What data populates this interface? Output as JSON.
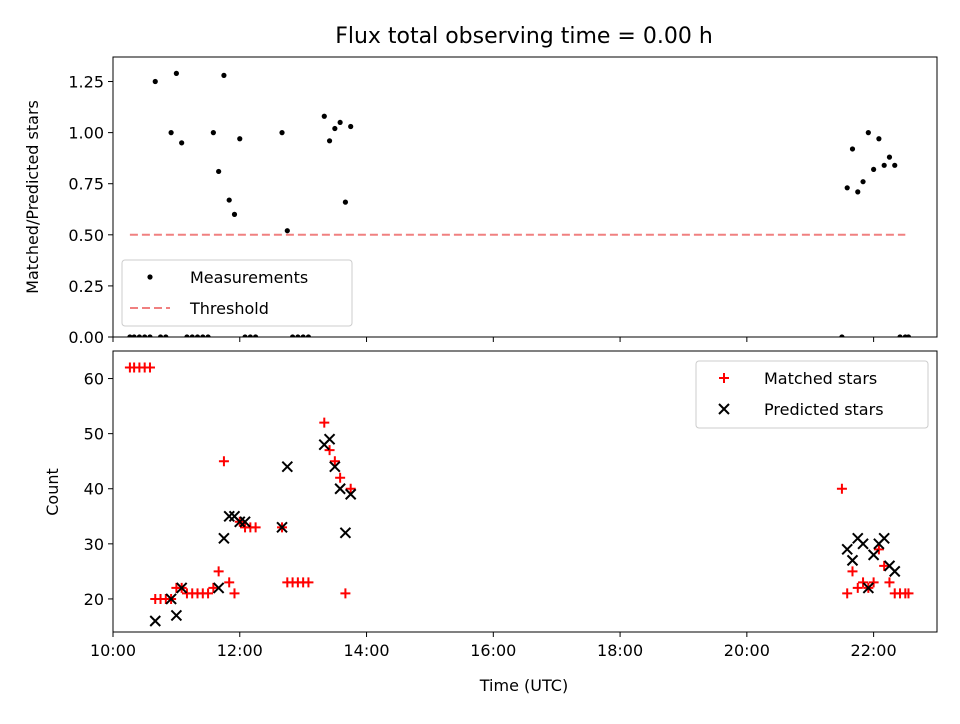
{
  "chart_data": [
    {
      "type": "scatter",
      "title": "Flux total observing time = 0.00 h",
      "xlabel": "",
      "ylabel": "Matched/Predicted stars",
      "xlim": [
        "10:00",
        "23:00"
      ],
      "ylim": [
        0,
        1.37
      ],
      "yticks": [
        "0.00",
        "0.25",
        "0.50",
        "0.75",
        "1.00",
        "1.25"
      ],
      "legend_position": "lower-left",
      "series": [
        {
          "name": "Measurements",
          "marker": "dot",
          "color": "#000000",
          "x": [
            "10:16",
            "10:20",
            "10:25",
            "10:30",
            "10:35",
            "10:40",
            "10:45",
            "10:50",
            "10:55",
            "11:00",
            "11:05",
            "11:10",
            "11:15",
            "11:20",
            "11:25",
            "11:30",
            "11:35",
            "11:40",
            "11:45",
            "11:50",
            "11:55",
            "12:00",
            "12:05",
            "12:10",
            "12:15",
            "12:40",
            "12:45",
            "12:50",
            "12:55",
            "13:00",
            "13:05",
            "13:20",
            "13:25",
            "13:30",
            "13:35",
            "13:40",
            "13:45",
            "21:30",
            "21:35",
            "21:40",
            "21:45",
            "21:50",
            "21:55",
            "22:00",
            "22:05",
            "22:10",
            "22:15",
            "22:20",
            "22:25",
            "22:30",
            "22:33"
          ],
          "y": [
            0,
            0,
            0,
            0,
            0,
            1.25,
            0,
            0,
            1.0,
            1.29,
            0.95,
            0,
            0,
            0,
            0,
            0,
            1.0,
            0.81,
            1.28,
            0.67,
            0.6,
            0.97,
            0,
            0,
            0,
            1.0,
            0.52,
            0,
            0,
            0,
            0,
            1.08,
            0.96,
            1.02,
            1.05,
            0.66,
            1.03,
            0,
            0.73,
            0.92,
            0.71,
            0.76,
            1.0,
            0.82,
            0.97,
            0.84,
            0.88,
            0.84,
            0,
            0,
            0
          ]
        },
        {
          "name": "Threshold",
          "type": "line",
          "style": "dashed",
          "color": "#f08080",
          "x": [
            "10:16",
            "22:30"
          ],
          "y": [
            0.5,
            0.5
          ]
        }
      ]
    },
    {
      "type": "scatter",
      "title": "",
      "xlabel": "Time (UTC)",
      "ylabel": "Count",
      "xlim": [
        "10:00",
        "23:00"
      ],
      "ylim": [
        14,
        65
      ],
      "xticks": [
        "10:00",
        "12:00",
        "14:00",
        "16:00",
        "18:00",
        "20:00",
        "22:00"
      ],
      "yticks": [
        "20",
        "30",
        "40",
        "50",
        "60"
      ],
      "legend_position": "upper-right",
      "series": [
        {
          "name": "Matched stars",
          "marker": "plus",
          "color": "#ff0000",
          "x": [
            "10:16",
            "10:20",
            "10:25",
            "10:30",
            "10:35",
            "10:40",
            "10:45",
            "10:50",
            "10:55",
            "11:00",
            "11:05",
            "11:10",
            "11:15",
            "11:20",
            "11:25",
            "11:30",
            "11:35",
            "11:40",
            "11:45",
            "11:50",
            "11:55",
            "12:00",
            "12:05",
            "12:10",
            "12:15",
            "12:40",
            "12:45",
            "12:50",
            "12:55",
            "13:00",
            "13:05",
            "13:20",
            "13:25",
            "13:30",
            "13:35",
            "13:40",
            "13:45",
            "21:30",
            "21:35",
            "21:40",
            "21:45",
            "21:50",
            "21:55",
            "22:00",
            "22:05",
            "22:10",
            "22:15",
            "22:20",
            "22:25",
            "22:30",
            "22:33"
          ],
          "y": [
            62,
            62,
            62,
            62,
            62,
            20,
            20,
            20,
            20,
            22,
            22,
            21,
            21,
            21,
            21,
            21,
            22,
            25,
            45,
            23,
            21,
            34,
            33,
            33,
            33,
            33,
            23,
            23,
            23,
            23,
            23,
            52,
            47,
            45,
            42,
            21,
            40,
            40,
            21,
            25,
            22,
            23,
            22,
            23,
            29,
            26,
            23,
            21,
            21,
            21,
            21
          ]
        },
        {
          "name": "Predicted stars",
          "marker": "x",
          "color": "#000000",
          "x": [
            "10:40",
            "10:55",
            "11:00",
            "11:05",
            "11:40",
            "11:45",
            "11:50",
            "11:55",
            "12:00",
            "12:05",
            "12:40",
            "12:45",
            "13:20",
            "13:25",
            "13:30",
            "13:35",
            "13:40",
            "13:45",
            "21:35",
            "21:40",
            "21:45",
            "21:50",
            "21:55",
            "22:00",
            "22:05",
            "22:10",
            "22:15",
            "22:20"
          ],
          "y": [
            16,
            20,
            17,
            22,
            22,
            31,
            35,
            35,
            34,
            34,
            33,
            44,
            48,
            49,
            44,
            40,
            32,
            39,
            29,
            27,
            31,
            30,
            22,
            28,
            30,
            31,
            26,
            25
          ]
        }
      ]
    }
  ]
}
